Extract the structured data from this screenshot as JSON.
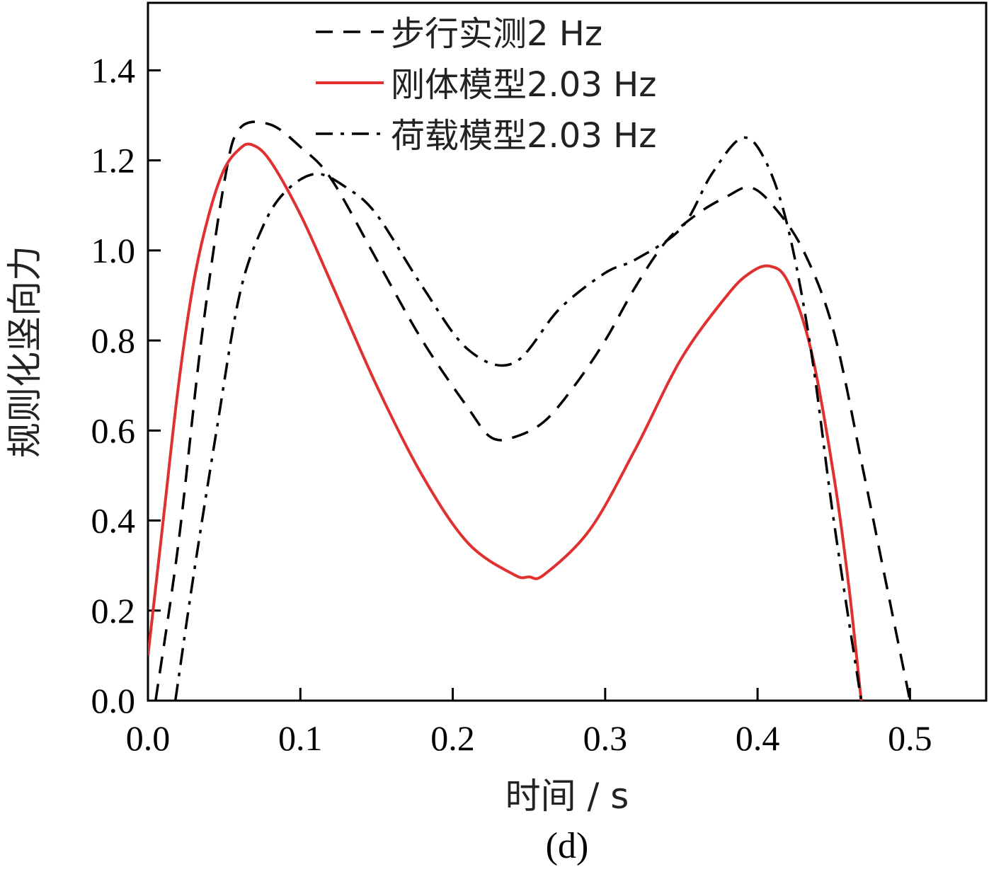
{
  "chart_data": {
    "type": "line",
    "caption": "(d)",
    "xlabel": "时间 / s",
    "ylabel": "规则化竖向力",
    "xlim": [
      0,
      0.55
    ],
    "ylim": [
      0,
      1.55
    ],
    "x_ticks": [
      0.0,
      0.1,
      0.2,
      0.3,
      0.4,
      0.5
    ],
    "x_tick_labels": [
      "0.0",
      "0.1",
      "0.2",
      "0.3",
      "0.4",
      "0.5"
    ],
    "y_ticks": [
      0.0,
      0.2,
      0.4,
      0.6,
      0.8,
      1.0,
      1.2,
      1.4
    ],
    "y_tick_labels": [
      "0.0",
      "0.2",
      "0.4",
      "0.6",
      "0.8",
      "1.0",
      "1.2",
      "1.4"
    ],
    "legend_position": "top-center",
    "series": [
      {
        "name": "步行实测2 Hz",
        "style": "dashed",
        "color": "#000000",
        "x": [
          0.005,
          0.02,
          0.035,
          0.05,
          0.06,
          0.08,
          0.1,
          0.12,
          0.15,
          0.18,
          0.21,
          0.225,
          0.24,
          0.26,
          0.28,
          0.3,
          0.32,
          0.34,
          0.36,
          0.38,
          0.395,
          0.41,
          0.43,
          0.45,
          0.47,
          0.485,
          0.5
        ],
        "y": [
          0.0,
          0.35,
          0.8,
          1.15,
          1.27,
          1.28,
          1.23,
          1.16,
          0.98,
          0.8,
          0.65,
          0.585,
          0.585,
          0.62,
          0.7,
          0.8,
          0.92,
          1.02,
          1.08,
          1.12,
          1.14,
          1.1,
          1.0,
          0.82,
          0.5,
          0.25,
          0.0
        ]
      },
      {
        "name": "刚体模型2.03 Hz",
        "style": "solid",
        "color": "#e03030",
        "x": [
          0.0,
          0.01,
          0.02,
          0.03,
          0.04,
          0.05,
          0.06,
          0.068,
          0.08,
          0.1,
          0.12,
          0.15,
          0.18,
          0.21,
          0.24,
          0.25,
          0.26,
          0.29,
          0.32,
          0.35,
          0.38,
          0.395,
          0.408,
          0.42,
          0.435,
          0.45,
          0.46,
          0.468
        ],
        "y": [
          0.1,
          0.4,
          0.7,
          0.93,
          1.08,
          1.18,
          1.225,
          1.235,
          1.2,
          1.08,
          0.93,
          0.7,
          0.5,
          0.35,
          0.28,
          0.275,
          0.28,
          0.38,
          0.56,
          0.76,
          0.9,
          0.95,
          0.965,
          0.93,
          0.78,
          0.5,
          0.25,
          0.0
        ]
      },
      {
        "name": "荷载模型2.03 Hz",
        "style": "dashdot",
        "color": "#000000",
        "x": [
          0.018,
          0.03,
          0.045,
          0.06,
          0.075,
          0.09,
          0.11,
          0.13,
          0.15,
          0.18,
          0.21,
          0.24,
          0.27,
          0.3,
          0.32,
          0.35,
          0.37,
          0.39,
          0.405,
          0.42,
          0.435,
          0.45,
          0.468
        ],
        "y": [
          0.0,
          0.28,
          0.6,
          0.9,
          1.05,
          1.13,
          1.17,
          1.14,
          1.08,
          0.92,
          0.78,
          0.75,
          0.87,
          0.95,
          0.98,
          1.05,
          1.17,
          1.25,
          1.2,
          1.05,
          0.78,
          0.4,
          0.0
        ]
      }
    ]
  }
}
